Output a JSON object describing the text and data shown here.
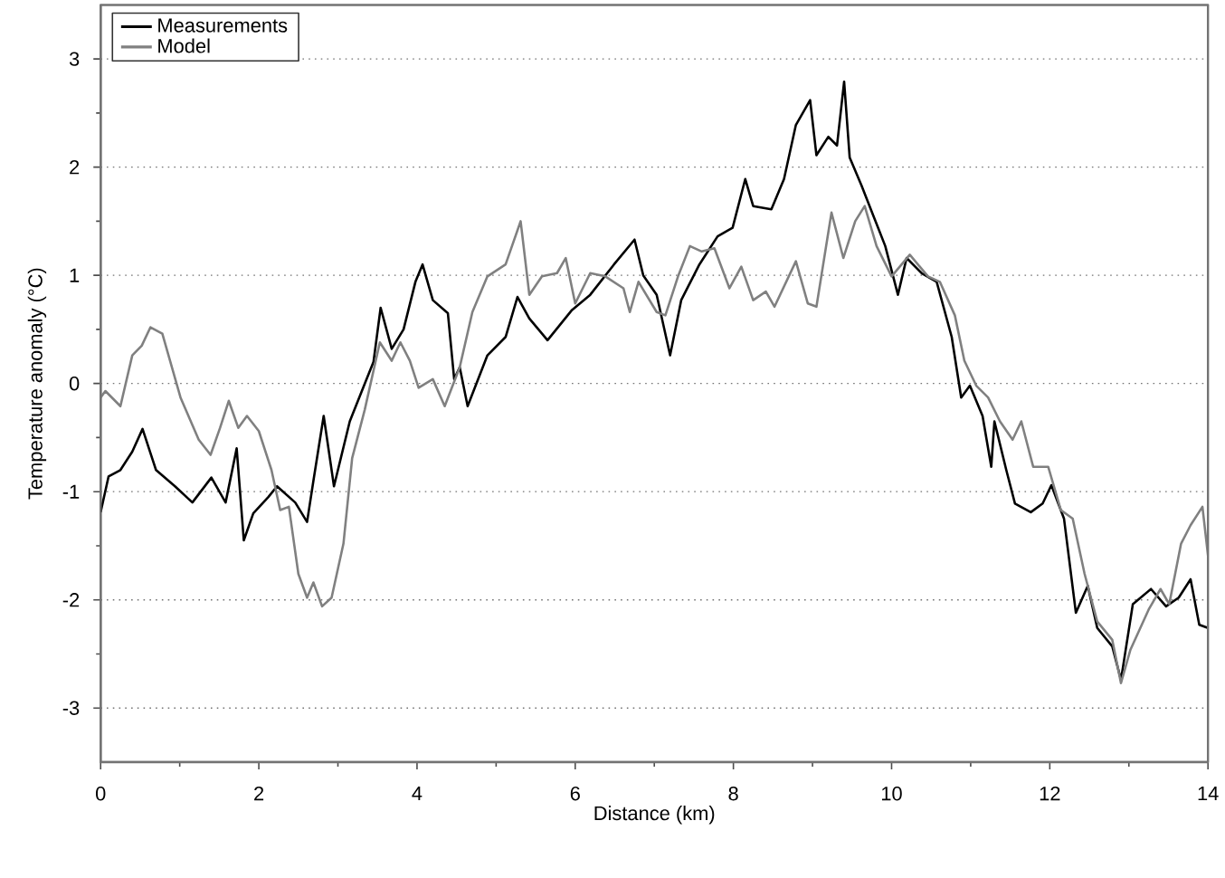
{
  "chart_data": {
    "type": "line",
    "xlabel": "Distance (km)",
    "ylabel": "Temperature anomaly (°C)",
    "xlim": [
      0,
      14
    ],
    "ylim": [
      -3.5,
      3.5
    ],
    "xticks": [
      0,
      2,
      4,
      6,
      8,
      10,
      12,
      14
    ],
    "yticks": [
      -3,
      -2,
      -1,
      0,
      1,
      2,
      3
    ],
    "grid": "y",
    "legend": "top left",
    "line_style": "solid",
    "marker": "none",
    "series": [
      {
        "name": "Measurements",
        "color": "#000000",
        "x": [
          0,
          0.1,
          0.25,
          0.4,
          0.53,
          0.7,
          0.94,
          1.16,
          1.4,
          1.58,
          1.72,
          1.81,
          1.93,
          2.12,
          2.23,
          2.46,
          2.61,
          2.69,
          2.82,
          2.95,
          3.15,
          3.34,
          3.45,
          3.54,
          3.68,
          3.83,
          3.98,
          4.07,
          4.2,
          4.39,
          4.47,
          4.54,
          4.64,
          4.89,
          5.12,
          5.27,
          5.42,
          5.65,
          5.96,
          6.19,
          6.49,
          6.75,
          6.86,
          7.03,
          7.2,
          7.34,
          7.57,
          7.8,
          7.99,
          8.15,
          8.25,
          8.48,
          8.64,
          8.79,
          8.97,
          9.05,
          9.2,
          9.31,
          9.4,
          9.47,
          9.62,
          9.77,
          9.92,
          10.08,
          10.19,
          10.38,
          10.57,
          10.76,
          10.88,
          10.99,
          11.15,
          11.26,
          11.3,
          11.45,
          11.56,
          11.76,
          11.91,
          12.02,
          12.18,
          12.33,
          12.48,
          12.6,
          12.79,
          12.9,
          13.05,
          13.28,
          13.47,
          13.63,
          13.78,
          13.89,
          14.0
        ],
        "values": [
          -1.19,
          -0.86,
          -0.8,
          -0.63,
          -0.42,
          -0.8,
          -0.95,
          -1.1,
          -0.87,
          -1.1,
          -0.6,
          -1.45,
          -1.2,
          -1.05,
          -0.95,
          -1.1,
          -1.28,
          -0.9,
          -0.3,
          -0.95,
          -0.35,
          0.0,
          0.2,
          0.7,
          0.32,
          0.5,
          0.94,
          1.1,
          0.77,
          0.65,
          0.04,
          0.15,
          -0.21,
          0.26,
          0.43,
          0.8,
          0.6,
          0.4,
          0.68,
          0.82,
          1.1,
          1.33,
          1.0,
          0.82,
          0.26,
          0.77,
          1.1,
          1.36,
          1.44,
          1.89,
          1.64,
          1.61,
          1.89,
          2.39,
          2.62,
          2.11,
          2.28,
          2.2,
          2.79,
          2.09,
          1.83,
          1.55,
          1.27,
          0.82,
          1.16,
          1.02,
          0.94,
          0.43,
          -0.13,
          -0.02,
          -0.3,
          -0.77,
          -0.35,
          -0.8,
          -1.11,
          -1.19,
          -1.11,
          -0.94,
          -1.25,
          -2.12,
          -1.87,
          -2.26,
          -2.43,
          -2.74,
          -2.04,
          -1.9,
          -2.06,
          -1.98,
          -1.81,
          -2.23,
          -2.26
        ]
      },
      {
        "name": "Model",
        "color": "#808080",
        "x": [
          0,
          0.06,
          0.25,
          0.4,
          0.52,
          0.63,
          0.78,
          1.01,
          1.24,
          1.39,
          1.51,
          1.62,
          1.74,
          1.85,
          2.0,
          2.16,
          2.27,
          2.38,
          2.5,
          2.61,
          2.69,
          2.8,
          2.92,
          3.07,
          3.18,
          3.34,
          3.53,
          3.68,
          3.79,
          3.91,
          4.02,
          4.2,
          4.35,
          4.54,
          4.7,
          4.89,
          5.12,
          5.31,
          5.42,
          5.58,
          5.77,
          5.88,
          6.0,
          6.19,
          6.38,
          6.61,
          6.69,
          6.8,
          7.03,
          7.14,
          7.3,
          7.45,
          7.6,
          7.76,
          7.95,
          8.1,
          8.25,
          8.41,
          8.52,
          8.79,
          8.94,
          9.05,
          9.24,
          9.39,
          9.54,
          9.66,
          9.81,
          10.0,
          10.23,
          10.46,
          10.61,
          10.8,
          10.92,
          11.07,
          11.22,
          11.37,
          11.53,
          11.64,
          11.79,
          11.98,
          12.14,
          12.29,
          12.44,
          12.6,
          12.79,
          12.9,
          13.02,
          13.25,
          13.4,
          13.51,
          13.66,
          13.78,
          13.93,
          14.0
        ],
        "values": [
          -0.13,
          -0.07,
          -0.21,
          0.26,
          0.35,
          0.52,
          0.46,
          -0.13,
          -0.52,
          -0.66,
          -0.41,
          -0.16,
          -0.41,
          -0.3,
          -0.44,
          -0.8,
          -1.17,
          -1.14,
          -1.76,
          -1.98,
          -1.84,
          -2.06,
          -1.98,
          -1.48,
          -0.69,
          -0.24,
          0.38,
          0.21,
          0.38,
          0.21,
          -0.04,
          0.04,
          -0.21,
          0.15,
          0.66,
          0.99,
          1.1,
          1.5,
          0.82,
          0.99,
          1.02,
          1.16,
          0.74,
          1.02,
          0.99,
          0.88,
          0.66,
          0.94,
          0.66,
          0.63,
          0.99,
          1.27,
          1.22,
          1.25,
          0.88,
          1.08,
          0.77,
          0.85,
          0.71,
          1.13,
          0.74,
          0.71,
          1.58,
          1.16,
          1.5,
          1.64,
          1.27,
          0.99,
          1.19,
          0.99,
          0.94,
          0.63,
          0.21,
          -0.02,
          -0.13,
          -0.35,
          -0.52,
          -0.35,
          -0.77,
          -0.77,
          -1.17,
          -1.25,
          -1.76,
          -2.2,
          -2.37,
          -2.77,
          -2.46,
          -2.09,
          -1.9,
          -2.04,
          -1.48,
          -1.31,
          -1.14,
          -1.59
        ]
      }
    ]
  }
}
